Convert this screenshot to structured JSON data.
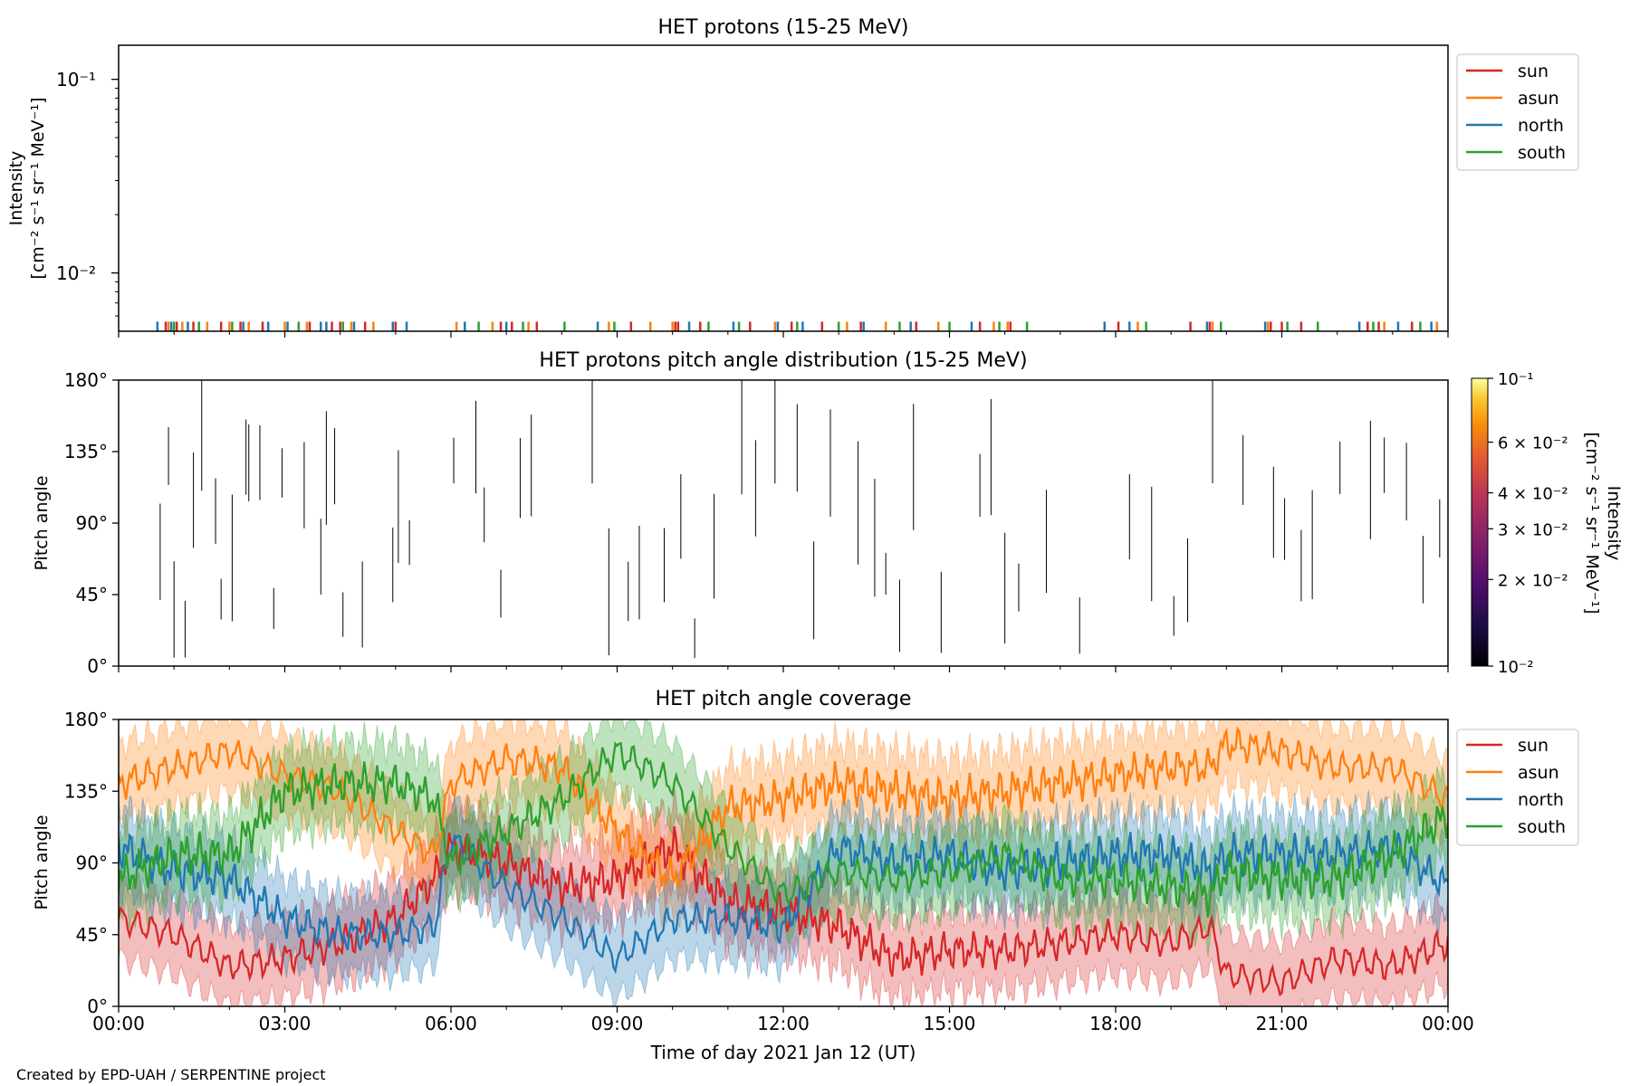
{
  "figure": {
    "footer": "Created by EPD-UAH / SERPENTINE project",
    "xlabel": "Time of day 2021 Jan 12 (UT)",
    "x_ticks": [
      "00:00",
      "03:00",
      "06:00",
      "09:00",
      "12:00",
      "15:00",
      "18:00",
      "21:00",
      "00:00"
    ]
  },
  "legend": {
    "sun": "sun",
    "asun": "asun",
    "north": "north",
    "south": "south"
  },
  "colors": {
    "sun": "#d62728",
    "asun": "#ff7f0e",
    "north": "#1f77b4",
    "south": "#2ca02c"
  },
  "panel1": {
    "title": "HET protons (15-25 MeV)",
    "ylabel": "Intensity",
    "ylabel_unit": "[cm⁻² s⁻¹ sr⁻¹ MeV⁻¹]",
    "ytick_high": "10⁻¹",
    "ytick_low": "10⁻²"
  },
  "panel2": {
    "title": "HET protons pitch angle distribution (15-25 MeV)",
    "ylabel": "Pitch angle",
    "yticks": [
      "0°",
      "45°",
      "90°",
      "135°",
      "180°"
    ],
    "colorbar_label": "Intensity",
    "colorbar_unit": "[cm⁻² s⁻¹ sr⁻¹ MeV⁻¹]",
    "colorbar_ticks": [
      "10⁻¹",
      "6 × 10⁻²",
      "4 × 10⁻²",
      "3 × 10⁻²",
      "2 × 10⁻²",
      "10⁻²"
    ]
  },
  "panel3": {
    "title": "HET pitch angle coverage",
    "ylabel": "Pitch angle",
    "yticks": [
      "0°",
      "45°",
      "90°",
      "135°",
      "180°"
    ]
  },
  "chart_data": [
    {
      "type": "line",
      "title": "HET protons (15-25 MeV)",
      "xlabel": "",
      "ylabel": "Intensity [cm⁻² s⁻¹ sr⁻¹ MeV⁻¹]",
      "yscale": "log",
      "ylim": [
        0.005,
        0.15
      ],
      "xlim": [
        0,
        24
      ],
      "x_units": "hours UT, 2021 Jan 12",
      "note_values": "sporadic single-count spikes near 0.0055",
      "legend": "right, outside",
      "series": [
        {
          "name": "sun",
          "spike_times": [
            0.85,
            1.05,
            1.35,
            1.85,
            2.2,
            2.6,
            3.45,
            3.85,
            4.0,
            4.45,
            5.0,
            6.9,
            7.1,
            7.55,
            9.25,
            10.05,
            10.1,
            10.5,
            11.4,
            12.15,
            12.7,
            13.4,
            14.4,
            15.55,
            16.1,
            18.05,
            19.35,
            19.7,
            20.8,
            21.0,
            21.35,
            22.55,
            22.75,
            23.35
          ]
        },
        {
          "name": "asun",
          "spike_times": [
            0.9,
            1.15,
            1.6,
            2.0,
            2.35,
            3.0,
            3.4,
            4.2,
            4.6,
            6.1,
            6.75,
            7.4,
            8.85,
            9.6,
            10.0,
            11.85,
            13.15,
            13.85,
            14.8,
            15.8,
            16.05,
            18.4,
            19.75,
            20.75,
            22.85,
            23.8
          ]
        },
        {
          "name": "north",
          "spike_times": [
            0.7,
            0.95,
            1.25,
            2.25,
            2.7,
            3.05,
            3.65,
            3.75,
            4.25,
            4.95,
            5.2,
            6.25,
            7.0,
            8.65,
            10.3,
            11.1,
            11.9,
            12.35,
            13.45,
            14.3,
            15.4,
            17.8,
            18.25,
            19.65,
            20.7,
            22.4,
            23.1,
            23.7
          ]
        },
        {
          "name": "south",
          "spike_times": [
            1.0,
            1.45,
            2.05,
            3.25,
            4.05,
            6.5,
            7.3,
            8.05,
            8.95,
            10.65,
            11.2,
            12.25,
            13.0,
            14.1,
            15.0,
            15.9,
            16.4,
            18.55,
            19.9,
            21.1,
            21.65,
            22.65,
            23.5
          ]
        }
      ]
    },
    {
      "type": "heatmap",
      "title": "HET protons pitch angle distribution (15-25 MeV)",
      "xlabel": "",
      "ylabel": "Pitch angle",
      "ylim": [
        0,
        180
      ],
      "xlim": [
        0,
        24
      ],
      "colorscale": "inferno",
      "clim": [
        0.01,
        0.1
      ],
      "colorbar_scale": "log",
      "note": "sparse data; only thin near-black vertical strips visible",
      "strips_hours": [
        0.75,
        0.9,
        1.0,
        1.2,
        1.35,
        1.5,
        1.75,
        1.85,
        2.05,
        2.3,
        2.35,
        2.55,
        2.8,
        2.95,
        3.35,
        3.65,
        3.75,
        3.9,
        4.05,
        4.4,
        4.95,
        5.05,
        5.25,
        6.05,
        6.45,
        6.6,
        6.9,
        7.25,
        7.45,
        8.55,
        8.85,
        9.2,
        9.4,
        9.85,
        10.15,
        10.4,
        10.75,
        11.25,
        11.5,
        11.85,
        12.25,
        12.55,
        12.85,
        13.35,
        13.65,
        13.85,
        14.1,
        14.35,
        14.85,
        15.55,
        15.75,
        16.0,
        16.25,
        16.75,
        17.35,
        18.25,
        18.65,
        19.05,
        19.3,
        19.75,
        20.3,
        20.85,
        21.05,
        21.35,
        21.55,
        22.05,
        22.6,
        22.85,
        23.25,
        23.55,
        23.85
      ]
    },
    {
      "type": "line",
      "title": "HET pitch angle coverage",
      "xlabel": "Time of day 2021 Jan 12 (UT)",
      "ylabel": "Pitch angle",
      "ylim": [
        0,
        180
      ],
      "xlim": [
        0,
        24
      ],
      "legend": "right, outside",
      "series": [
        {
          "name": "sun",
          "x": [
            0,
            1,
            2,
            3,
            4,
            5,
            5.7,
            6,
            7,
            8,
            9,
            10,
            11,
            12,
            13,
            14,
            15,
            16,
            17,
            18,
            19,
            19.7,
            20,
            21,
            22,
            23,
            24
          ],
          "y": [
            55,
            45,
            25,
            30,
            40,
            55,
            80,
            100,
            90,
            75,
            80,
            100,
            65,
            60,
            50,
            30,
            35,
            35,
            40,
            45,
            40,
            50,
            20,
            15,
            30,
            25,
            40
          ],
          "band": 25
        },
        {
          "name": "asun",
          "x": [
            0,
            1,
            2,
            3,
            4,
            5,
            5.7,
            6,
            7,
            8,
            9,
            10,
            11,
            12,
            13,
            14,
            15,
            16,
            17,
            18,
            19,
            19.7,
            20,
            21,
            22,
            23,
            24
          ],
          "y": [
            140,
            150,
            160,
            145,
            135,
            110,
            95,
            140,
            155,
            150,
            110,
            80,
            125,
            130,
            140,
            135,
            130,
            135,
            140,
            145,
            150,
            150,
            165,
            160,
            150,
            150,
            130
          ],
          "band": 25
        },
        {
          "name": "north",
          "x": [
            0,
            1,
            2,
            3,
            4,
            5,
            5.7,
            6,
            7,
            8,
            9,
            10,
            11,
            12,
            13,
            14,
            15,
            16,
            17,
            18,
            19,
            19.7,
            20,
            21,
            22,
            23,
            24
          ],
          "y": [
            100,
            85,
            80,
            55,
            45,
            45,
            50,
            105,
            75,
            55,
            30,
            55,
            55,
            50,
            100,
            90,
            95,
            85,
            90,
            95,
            95,
            85,
            95,
            95,
            95,
            100,
            75
          ],
          "band": 25
        },
        {
          "name": "south",
          "x": [
            0,
            1,
            2,
            3,
            4,
            5,
            5.7,
            6,
            7,
            8,
            9,
            10,
            11,
            12,
            13,
            14,
            15,
            16,
            17,
            18,
            19,
            19.7,
            20,
            21,
            22,
            23,
            24
          ],
          "y": [
            80,
            95,
            95,
            135,
            140,
            140,
            130,
            90,
            110,
            130,
            160,
            140,
            100,
            70,
            85,
            80,
            85,
            95,
            80,
            80,
            75,
            70,
            85,
            80,
            80,
            95,
            120
          ],
          "band": 25
        }
      ]
    }
  ]
}
